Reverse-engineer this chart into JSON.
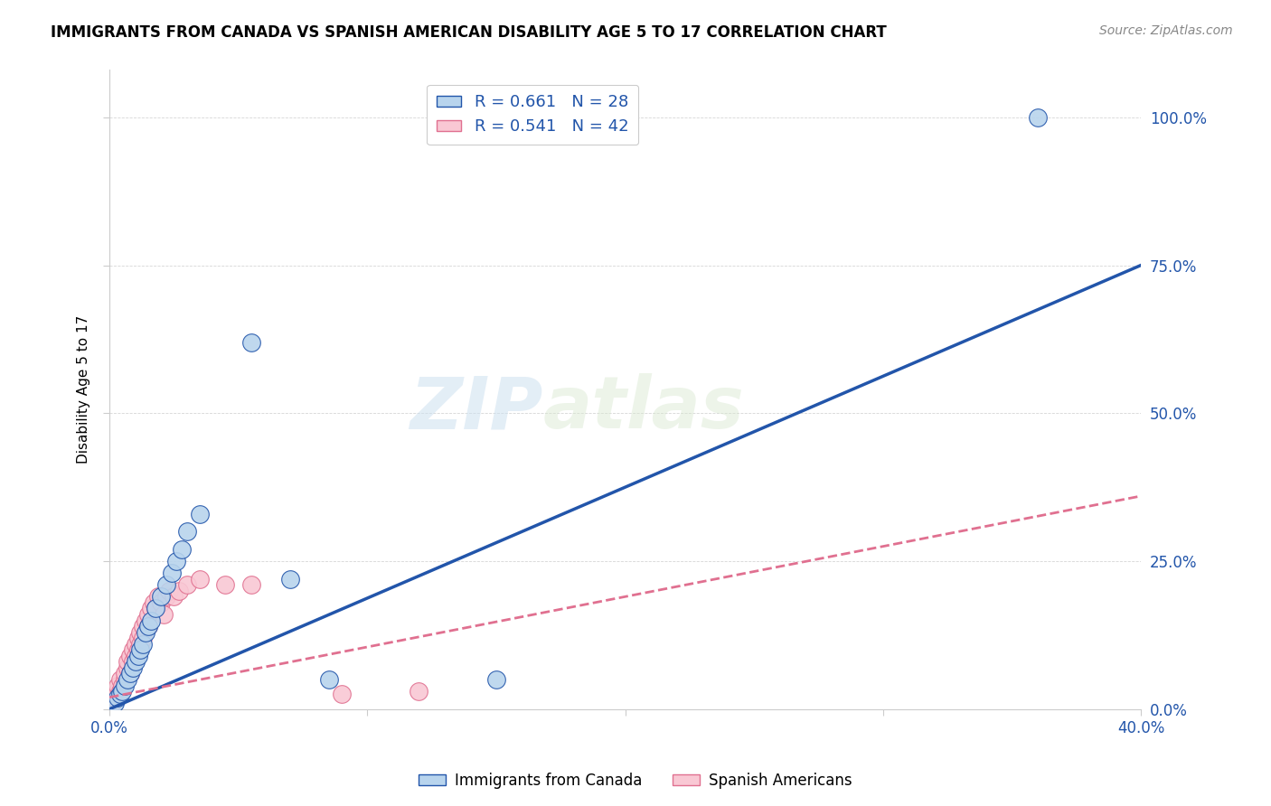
{
  "title": "IMMIGRANTS FROM CANADA VS SPANISH AMERICAN DISABILITY AGE 5 TO 17 CORRELATION CHART",
  "source": "Source: ZipAtlas.com",
  "ylabel": "Disability Age 5 to 17",
  "ytick_labels": [
    "0.0%",
    "25.0%",
    "50.0%",
    "75.0%",
    "100.0%"
  ],
  "ytick_values": [
    0,
    25,
    50,
    75,
    100
  ],
  "xlim": [
    0,
    40
  ],
  "ylim": [
    0,
    108
  ],
  "canada_R": 0.661,
  "canada_N": 28,
  "spanish_R": 0.541,
  "spanish_N": 42,
  "canada_color": "#b8d4ed",
  "canada_line_color": "#2255aa",
  "spanish_color": "#f9c8d4",
  "spanish_line_color": "#e07090",
  "legend_label_canada": "Immigrants from Canada",
  "legend_label_spanish": "Spanish Americans",
  "watermark_zip": "ZIP",
  "watermark_atlas": "atlas",
  "canada_line_x": [
    0,
    40
  ],
  "canada_line_y": [
    0,
    75
  ],
  "spanish_line_x": [
    0,
    40
  ],
  "spanish_line_y": [
    2,
    36
  ],
  "canada_points_x": [
    0.2,
    0.3,
    0.4,
    0.5,
    0.6,
    0.7,
    0.8,
    0.9,
    1.0,
    1.1,
    1.2,
    1.3,
    1.4,
    1.5,
    1.6,
    1.8,
    2.0,
    2.2,
    2.4,
    2.6,
    2.8,
    3.0,
    3.5,
    5.5,
    7.0,
    8.5,
    15.0,
    36.0
  ],
  "canada_points_y": [
    1.0,
    2.0,
    2.5,
    3.0,
    4.0,
    5.0,
    6.0,
    7.0,
    8.0,
    9.0,
    10.0,
    11.0,
    13.0,
    14.0,
    15.0,
    17.0,
    19.0,
    21.0,
    23.0,
    25.0,
    27.0,
    30.0,
    33.0,
    62.0,
    22.0,
    5.0,
    5.0,
    100.0
  ],
  "spanish_points_x": [
    0.1,
    0.2,
    0.3,
    0.3,
    0.4,
    0.4,
    0.5,
    0.6,
    0.6,
    0.7,
    0.7,
    0.8,
    0.8,
    0.9,
    0.9,
    1.0,
    1.0,
    1.1,
    1.1,
    1.2,
    1.2,
    1.3,
    1.3,
    1.4,
    1.5,
    1.5,
    1.6,
    1.7,
    1.8,
    1.9,
    2.0,
    2.1,
    2.2,
    2.3,
    2.5,
    2.7,
    3.0,
    3.5,
    4.5,
    5.5,
    9.0,
    12.0
  ],
  "spanish_points_y": [
    1.0,
    2.0,
    3.0,
    4.0,
    3.0,
    5.0,
    4.0,
    5.0,
    6.0,
    7.0,
    8.0,
    6.0,
    9.0,
    8.0,
    10.0,
    9.0,
    11.0,
    10.0,
    12.0,
    11.0,
    13.0,
    12.0,
    14.0,
    15.0,
    14.0,
    16.0,
    17.0,
    18.0,
    17.0,
    19.0,
    18.0,
    16.0,
    19.0,
    20.0,
    19.0,
    20.0,
    21.0,
    22.0,
    21.0,
    21.0,
    2.5,
    3.0
  ]
}
